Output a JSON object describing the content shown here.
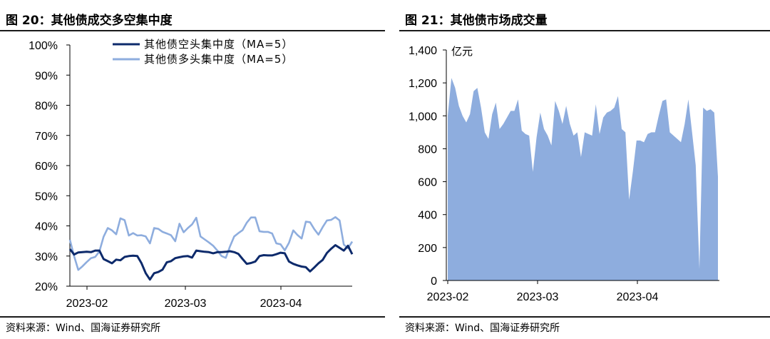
{
  "left": {
    "title": "图 20：其他债成交多空集中度",
    "source": "资料来源：Wind、国海证券研究所",
    "chart_data": {
      "type": "line",
      "ylim": [
        0.2,
        1.0
      ],
      "yticks": [
        "100%",
        "90%",
        "80%",
        "70%",
        "60%",
        "50%",
        "40%",
        "30%",
        "20%"
      ],
      "xticks": [
        "2023-02",
        "2023-03",
        "2023-04"
      ],
      "grid": false,
      "legend": "top-right",
      "colors": {
        "short": "#0d2a6b",
        "long": "#8eadde"
      },
      "series": [
        {
          "name": "其他债空头集中度（MA=5）",
          "values": [
            0.323,
            0.305,
            0.312,
            0.313,
            0.314,
            0.313,
            0.318,
            0.318,
            0.29,
            0.283,
            0.276,
            0.288,
            0.286,
            0.297,
            0.3,
            0.301,
            0.3,
            0.276,
            0.243,
            0.222,
            0.243,
            0.247,
            0.255,
            0.279,
            0.283,
            0.293,
            0.296,
            0.299,
            0.3,
            0.295,
            0.318,
            0.316,
            0.314,
            0.313,
            0.309,
            0.313,
            0.313,
            0.314,
            0.316,
            0.313,
            0.307,
            0.29,
            0.274,
            0.277,
            0.282,
            0.3,
            0.303,
            0.302,
            0.302,
            0.306,
            0.311,
            0.309,
            0.282,
            0.274,
            0.269,
            0.265,
            0.263,
            0.249,
            0.262,
            0.276,
            0.287,
            0.31,
            0.324,
            0.336,
            0.327,
            0.318,
            0.334,
            0.306
          ]
        },
        {
          "name": "其他债多头集中度（MA=5）",
          "values": [
            0.354,
            0.3,
            0.254,
            0.266,
            0.28,
            0.293,
            0.297,
            0.315,
            0.364,
            0.393,
            0.385,
            0.372,
            0.425,
            0.419,
            0.368,
            0.376,
            0.368,
            0.369,
            0.365,
            0.342,
            0.393,
            0.39,
            0.38,
            0.375,
            0.369,
            0.349,
            0.407,
            0.379,
            0.393,
            0.405,
            0.427,
            0.365,
            0.355,
            0.345,
            0.334,
            0.318,
            0.3,
            0.294,
            0.332,
            0.365,
            0.376,
            0.386,
            0.411,
            0.428,
            0.428,
            0.382,
            0.38,
            0.38,
            0.375,
            0.342,
            0.339,
            0.319,
            0.344,
            0.385,
            0.37,
            0.358,
            0.414,
            0.412,
            0.389,
            0.371,
            0.396,
            0.418,
            0.42,
            0.429,
            0.418,
            0.338,
            0.326,
            0.348
          ]
        }
      ]
    }
  },
  "right": {
    "title": "图 21：其他债市场成交量",
    "source": "资料来源：Wind、国海证券研究所",
    "chart_data": {
      "type": "area",
      "ylim": [
        0,
        1400
      ],
      "yticks": [
        "1,400",
        "1,200",
        "1,000",
        "800",
        "600",
        "400",
        "200",
        "0"
      ],
      "xticks": [
        "2023-02",
        "2023-03",
        "2023-04"
      ],
      "unit": "亿元",
      "grid": false,
      "colors": {
        "fill": "#8eadde"
      },
      "series": [
        {
          "name": "",
          "values": [
            1000,
            1230,
            1170,
            1060,
            1000,
            960,
            1010,
            1150,
            1170,
            1050,
            900,
            860,
            1010,
            1080,
            920,
            950,
            990,
            1030,
            1030,
            1100,
            910,
            890,
            880,
            660,
            870,
            1020,
            920,
            880,
            820,
            1090,
            1030,
            950,
            1060,
            950,
            880,
            900,
            750,
            900,
            890,
            880,
            1070,
            890,
            990,
            1020,
            1030,
            1050,
            1120,
            920,
            900,
            490,
            660,
            850,
            850,
            840,
            890,
            900,
            900,
            1000,
            1090,
            1100,
            900,
            880,
            860,
            840,
            950,
            1100,
            900,
            700,
            70,
            1050,
            1030,
            1040,
            1020,
            630
          ]
        }
      ]
    }
  }
}
